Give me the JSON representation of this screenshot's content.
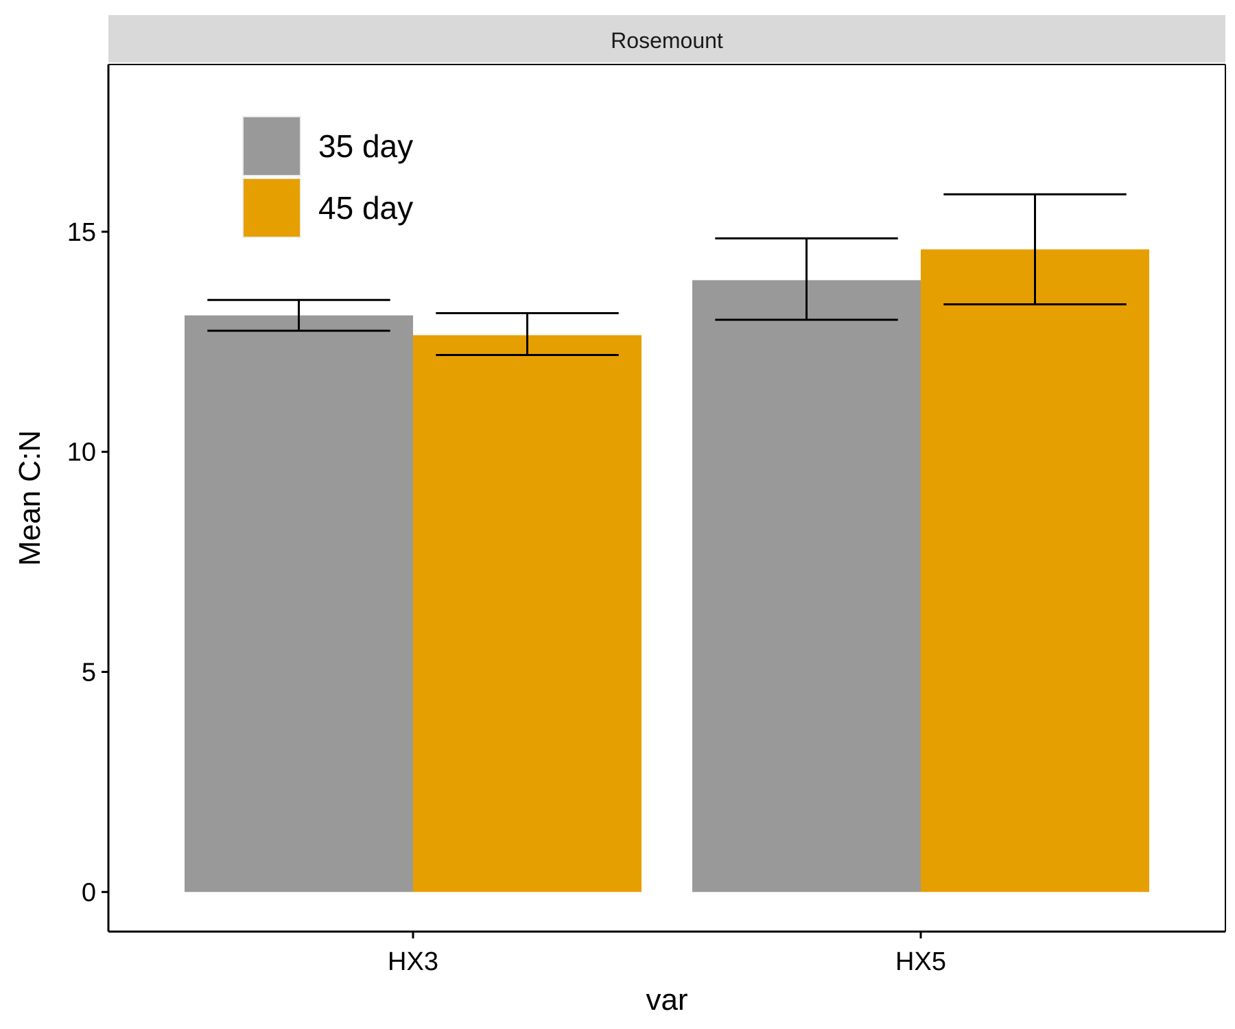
{
  "chart_data": {
    "type": "bar",
    "facet": "Rosemount",
    "xlabel": "var",
    "ylabel": "Mean C:N",
    "categories": [
      "HX3",
      "HX5"
    ],
    "ylim": [
      -0.9,
      18.8
    ],
    "yticks": [
      0,
      5,
      10,
      15
    ],
    "series": [
      {
        "name": "35 day",
        "color": "#999999",
        "values": [
          13.1,
          13.9
        ],
        "error_low": [
          12.75,
          13.0
        ],
        "error_high": [
          13.45,
          14.85
        ]
      },
      {
        "name": "45 day",
        "color": "#E69F00",
        "values": [
          12.65,
          14.6
        ],
        "error_low": [
          12.2,
          13.35
        ],
        "error_high": [
          13.15,
          15.85
        ]
      }
    ],
    "legend_position": "top-left inside",
    "grid": false
  }
}
